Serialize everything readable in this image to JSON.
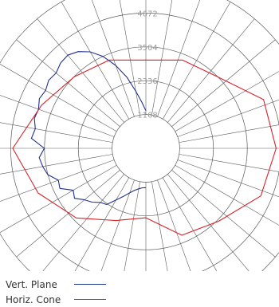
{
  "chart_data": {
    "type": "polar",
    "rings": [
      "1168",
      "2336",
      "3504",
      "4672"
    ],
    "ring_values": [
      1168,
      2336,
      3504,
      4672
    ],
    "r_max": 5840,
    "spokes": 36,
    "series": [
      {
        "name": "Vert. Plane",
        "color": "#1f2f8f",
        "points": [
          {
            "angle": 0,
            "value": 1360
          },
          {
            "angle": 5,
            "value": 1370
          },
          {
            "angle": 10,
            "value": 1420
          },
          {
            "angle": 15,
            "value": 1500
          },
          {
            "angle": 20,
            "value": 1640
          },
          {
            "angle": 25,
            "value": 1830
          },
          {
            "angle": 30,
            "value": 2060
          },
          {
            "angle": 35,
            "value": 2370
          },
          {
            "angle": 40,
            "value": 2440
          },
          {
            "angle": 45,
            "value": 2630
          },
          {
            "angle": 50,
            "value": 2770
          },
          {
            "angle": 55,
            "value": 3010
          },
          {
            "angle": 60,
            "value": 2900
          },
          {
            "angle": 65,
            "value": 3280
          },
          {
            "angle": 70,
            "value": 3220
          },
          {
            "angle": 75,
            "value": 3510
          },
          {
            "angle": 80,
            "value": 3620
          },
          {
            "angle": 85,
            "value": 3700
          },
          {
            "angle": 90,
            "value": 3510
          },
          {
            "angle": 95,
            "value": 3970
          },
          {
            "angle": 100,
            "value": 3880
          },
          {
            "angle": 105,
            "value": 3990
          },
          {
            "angle": 110,
            "value": 3950
          },
          {
            "angle": 115,
            "value": 4060
          },
          {
            "angle": 120,
            "value": 4000
          },
          {
            "angle": 125,
            "value": 4100
          },
          {
            "angle": 130,
            "value": 4050
          },
          {
            "angle": 135,
            "value": 4170
          },
          {
            "angle": 140,
            "value": 4200
          },
          {
            "angle": 145,
            "value": 4080
          },
          {
            "angle": 150,
            "value": 3850
          },
          {
            "angle": 155,
            "value": 3500
          },
          {
            "angle": 160,
            "value": 3050
          },
          {
            "angle": 165,
            "value": 2550
          },
          {
            "angle": 170,
            "value": 2000
          },
          {
            "angle": 175,
            "value": 1600
          },
          {
            "angle": 180,
            "value": 1300
          }
        ]
      },
      {
        "name": "Horiz. Cone",
        "color": "#d8232a",
        "points": [
          {
            "angle": 0,
            "value": 3050
          },
          {
            "angle": 22.5,
            "value": 3300
          },
          {
            "angle": 45,
            "value": 3500
          },
          {
            "angle": 67.5,
            "value": 4400
          },
          {
            "angle": 90,
            "value": 4500
          },
          {
            "angle": 112.5,
            "value": 4300
          },
          {
            "angle": 135,
            "value": 3560
          },
          {
            "angle": 157.5,
            "value": 3250
          },
          {
            "angle": 180,
            "value": 2400
          },
          {
            "angle": 202.5,
            "value": 2700
          },
          {
            "angle": 225,
            "value": 3400
          },
          {
            "angle": 247.5,
            "value": 4030
          },
          {
            "angle": 270,
            "value": 4600
          },
          {
            "angle": 292.5,
            "value": 3900
          },
          {
            "angle": 315,
            "value": 3500
          },
          {
            "angle": 337.5,
            "value": 3300
          }
        ]
      }
    ],
    "legend_position": "bottom-left",
    "grid": true
  },
  "legend": [
    {
      "label": "Vert. Plane",
      "color": "#1f2f8f"
    },
    {
      "label": "Horiz. Cone",
      "color": "#d8232a"
    }
  ]
}
